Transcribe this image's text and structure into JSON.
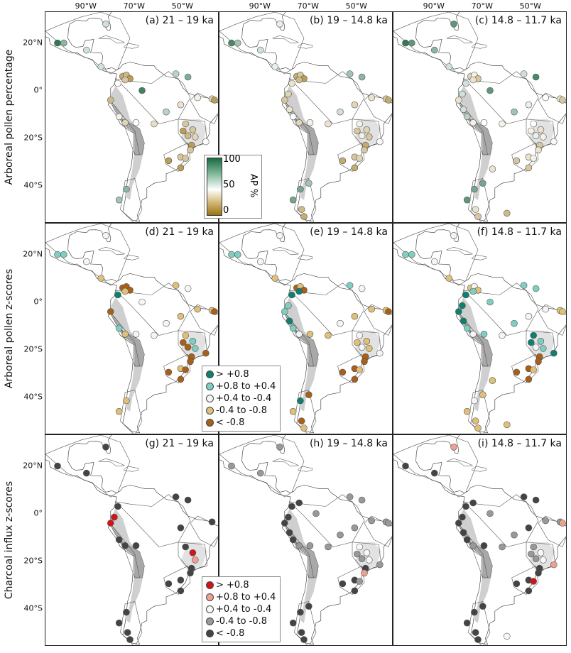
{
  "axes": {
    "lon_ticks": [
      "90°W",
      "70°W",
      "50°W"
    ],
    "lat_ticks": [
      "20°N",
      "0°",
      "20°S",
      "40°S"
    ]
  },
  "rows": [
    {
      "label": "Arboreal pollen percentage"
    },
    {
      "label": "Arboreal pollen z-scores"
    },
    {
      "label": "Charcoal influx z-scores"
    }
  ],
  "colors": {
    "ap_low": "#9c7410",
    "ap_mid": "#ffffff",
    "ap_high": "#1a6b43",
    "z": {
      "2": "#0d8070",
      "1": "#7fcfc0",
      "0": "#f5f5f5",
      "-1": "#e0c078",
      "-2": "#a85f1a"
    },
    "charcoal": {
      "2": "#d0141a",
      "1": "#f0a090",
      "0": "#f8f8f8",
      "-1": "#999999",
      "-2": "#444444"
    }
  },
  "ap_legend": {
    "title": "AP %",
    "ticks": [
      "100",
      "50",
      "0"
    ]
  },
  "z_legend": [
    {
      "code": "2",
      "label": "> +0.8"
    },
    {
      "code": "1",
      "label": "+0.8 to +0.4"
    },
    {
      "code": "0",
      "label": "+0.4 to -0.4"
    },
    {
      "code": "-1",
      "label": "-0.4 to -0.8"
    },
    {
      "code": "-2",
      "label": "< -0.8"
    }
  ],
  "charcoal_legend": [
    {
      "code": "2",
      "label": "> +0.8"
    },
    {
      "code": "1",
      "label": "+0.8 to +0.4"
    },
    {
      "code": "0",
      "label": "+0.4 to -0.4"
    },
    {
      "code": "-1",
      "label": "-0.4 to -0.8"
    },
    {
      "code": "-2",
      "label": "< -0.8"
    }
  ],
  "sites": [
    [
      -82,
      28
    ],
    [
      -102,
      20
    ],
    [
      -99.4,
      20
    ],
    [
      -90,
      17
    ],
    [
      -84,
      10
    ],
    [
      -75,
      6
    ],
    [
      -73.5,
      6.5
    ],
    [
      -72,
      5
    ],
    [
      -74,
      4.5
    ],
    [
      -77,
      3
    ],
    [
      -67,
      0
    ],
    [
      -80,
      -4
    ],
    [
      -76.5,
      -11
    ],
    [
      -74,
      -13.5
    ],
    [
      -69.5,
      -13.5
    ],
    [
      -62,
      -14
    ],
    [
      -57,
      -9
    ],
    [
      -51,
      -6
    ],
    [
      -53,
      7
    ],
    [
      -48,
      5.7
    ],
    [
      -44,
      -3
    ],
    [
      -38,
      -3.5
    ],
    [
      -37,
      -4
    ],
    [
      -49,
      -14
    ],
    [
      -50,
      -17
    ],
    [
      -46,
      -16.5
    ],
    [
      -48,
      -19
    ],
    [
      -45,
      -19.5
    ],
    [
      -40.6,
      -21.5
    ],
    [
      -46.5,
      -23
    ],
    [
      -47,
      -25
    ],
    [
      -56,
      -29.5
    ],
    [
      -51,
      -28
    ],
    [
      -49,
      -28.5
    ],
    [
      -51,
      -32.5
    ],
    [
      -73.5,
      -41.5
    ],
    [
      -76.5,
      -46
    ],
    [
      -73,
      -50
    ],
    [
      -72,
      -53
    ],
    [
      -70,
      -39
    ],
    [
      -78.5,
      -1.5
    ],
    [
      -66,
      -33
    ],
    [
      -60,
      -51.6
    ],
    [
      -78,
      -8
    ]
  ],
  "panels": [
    {
      "title": "(a) 21 – 19 ka",
      "kind": "ap",
      "values": [
        60,
        95,
        75,
        60,
        60,
        20,
        25,
        15,
        30,
        50,
        92,
        25,
        45,
        35,
        50,
        38,
        65,
        40,
        65,
        78,
        45,
        35,
        15,
        30,
        15,
        30,
        25,
        35,
        50,
        15,
        30,
        15,
        30,
        30,
        15,
        75,
        70,
        null,
        null,
        null,
        null,
        null,
        null,
        null
      ]
    },
    {
      "title": "(b) 19 – 14.8 ka",
      "kind": "ap",
      "values": [
        55,
        90,
        70,
        60,
        55,
        20,
        30,
        15,
        25,
        40,
        null,
        30,
        50,
        35,
        45,
        40,
        60,
        35,
        70,
        75,
        40,
        30,
        20,
        45,
        30,
        35,
        45,
        30,
        48,
        20,
        30,
        20,
        30,
        35,
        20,
        80,
        80,
        25,
        20,
        70,
        35,
        null,
        null,
        40
      ]
    },
    {
      "title": "(c) 14.8 – 11.7 ka",
      "kind": "ap",
      "values": [
        85,
        95,
        85,
        75,
        60,
        35,
        45,
        30,
        40,
        60,
        85,
        40,
        65,
        45,
        50,
        45,
        70,
        55,
        60,
        90,
        50,
        40,
        30,
        50,
        45,
        40,
        55,
        45,
        52,
        30,
        40,
        30,
        40,
        45,
        30,
        80,
        85,
        40,
        30,
        80,
        60,
        40,
        25,
        60
      ]
    },
    {
      "title": "(d) 21 – 19 ka",
      "kind": "z",
      "values": [
        0,
        1,
        1,
        0,
        -1,
        -2,
        -2,
        -2,
        -1,
        2,
        0,
        -2,
        1,
        -1,
        0,
        0,
        0,
        -1,
        -1,
        0,
        -1,
        -1,
        -2,
        -1,
        -2,
        1,
        -2,
        1,
        -2,
        -2,
        -2,
        -2,
        -1,
        -2,
        -2,
        -1,
        -1,
        null,
        null,
        null,
        null,
        null,
        null,
        null
      ]
    },
    {
      "title": "(e) 19 – 14.8 ka",
      "kind": "z",
      "values": [
        0,
        1,
        1,
        0,
        -1,
        -2,
        -1,
        -2,
        2,
        2,
        null,
        1,
        1,
        0,
        -1,
        -1,
        0,
        -1,
        1,
        0,
        -1,
        -1,
        -2,
        0,
        -1,
        -1,
        0,
        -1,
        0,
        -2,
        -2,
        -2,
        -2,
        -1,
        -2,
        2,
        -1,
        -2,
        -1,
        -2,
        1,
        null,
        null,
        2
      ]
    },
    {
      "title": "(f) 14.8 – 11.7 ka",
      "kind": "z",
      "values": [
        0,
        1,
        1,
        0,
        -1,
        -1,
        0,
        -1,
        1,
        2,
        1,
        2,
        1,
        0,
        1,
        0,
        1,
        0,
        1,
        1,
        0,
        -1,
        -1,
        2,
        2,
        1,
        0,
        1,
        2,
        -2,
        -2,
        -2,
        -2,
        -1,
        -2,
        0,
        -1,
        -1,
        -1,
        -1,
        2,
        -1,
        -1,
        2
      ]
    },
    {
      "title": "(g) 21 – 19 ka",
      "kind": "charcoal",
      "values": [
        -2,
        -2,
        null,
        -2,
        null,
        null,
        null,
        null,
        null,
        -2,
        null,
        2,
        -2,
        -2,
        -2,
        null,
        null,
        -2,
        -2,
        -2,
        null,
        -2,
        null,
        -2,
        null,
        2,
        null,
        1,
        null,
        -2,
        -2,
        -2,
        -2,
        null,
        -2,
        -2,
        -2,
        -2,
        -2,
        null,
        2,
        null,
        null,
        null
      ]
    },
    {
      "title": "(h) 19 – 14.8 ka",
      "kind": "charcoal",
      "values": [
        -1,
        -1,
        null,
        -1,
        null,
        null,
        null,
        null,
        -2,
        -2,
        -1,
        -2,
        -2,
        -1,
        -1,
        -1,
        -1,
        -1,
        -1,
        -1,
        -1,
        -1,
        -1,
        0,
        -1,
        0,
        -1,
        0,
        -1,
        -2,
        1,
        -2,
        -2,
        -1,
        -2,
        -2,
        -2,
        -2,
        -2,
        -2,
        -2,
        null,
        null,
        -2
      ]
    },
    {
      "title": "(i) 14.8 – 11.7 ka",
      "kind": "charcoal",
      "values": [
        1,
        -2,
        null,
        -2,
        null,
        null,
        null,
        null,
        -2,
        -2,
        -1,
        -2,
        -2,
        -1,
        -2,
        -1,
        -1,
        -2,
        -2,
        -2,
        -1,
        -1,
        1,
        -1,
        -1,
        0,
        -1,
        0,
        1,
        -2,
        -2,
        -2,
        -2,
        2,
        -2,
        -2,
        -2,
        -2,
        -2,
        -2,
        -2,
        null,
        0,
        -2
      ]
    }
  ]
}
